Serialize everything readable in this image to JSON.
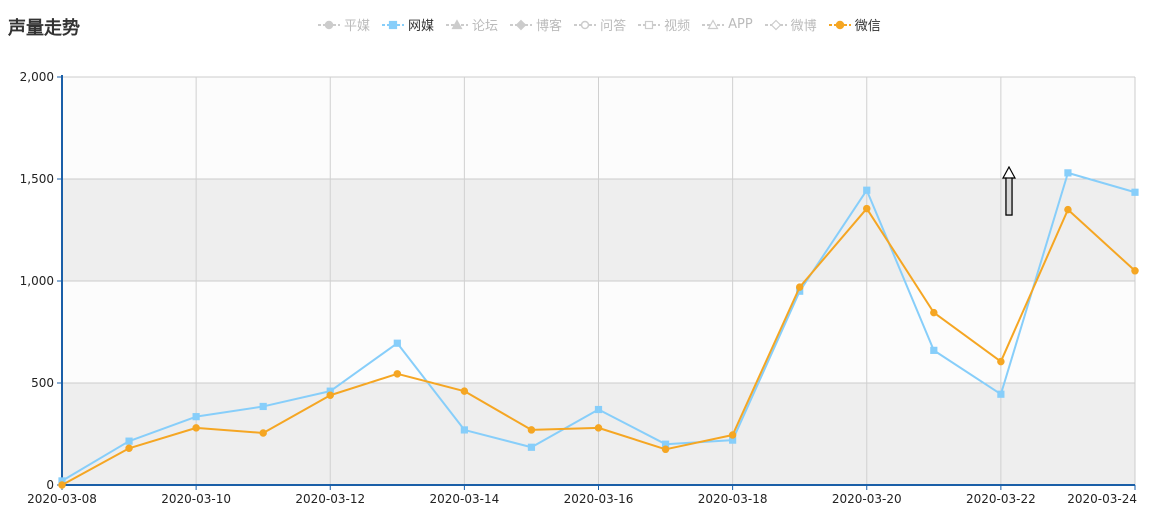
{
  "title": "声量走势",
  "legend": [
    {
      "name": "平媒",
      "color": "#cccccc",
      "marker": "circle",
      "active": false
    },
    {
      "name": "网媒",
      "color": "#87cefa",
      "marker": "square",
      "active": true
    },
    {
      "name": "论坛",
      "color": "#cccccc",
      "marker": "triangle",
      "active": false
    },
    {
      "name": "博客",
      "color": "#cccccc",
      "marker": "diamond",
      "active": false
    },
    {
      "name": "问答",
      "color": "#cccccc",
      "marker": "circle-open",
      "active": false
    },
    {
      "name": "视频",
      "color": "#cccccc",
      "marker": "square-open",
      "active": false
    },
    {
      "name": "APP",
      "color": "#cccccc",
      "marker": "triangle-open",
      "active": false
    },
    {
      "name": "微博",
      "color": "#cccccc",
      "marker": "diamond-open",
      "active": false
    },
    {
      "name": "微信",
      "color": "#f5a623",
      "marker": "circle",
      "active": true
    }
  ],
  "chart_data": {
    "type": "line",
    "title": "声量走势",
    "x": [
      "2020-03-08",
      "2020-03-09",
      "2020-03-10",
      "2020-03-11",
      "2020-03-12",
      "2020-03-13",
      "2020-03-14",
      "2020-03-15",
      "2020-03-16",
      "2020-03-17",
      "2020-03-18",
      "2020-03-19",
      "2020-03-20",
      "2020-03-21",
      "2020-03-22",
      "2020-03-23",
      "2020-03-24"
    ],
    "xtick_labels": [
      "2020-03-08",
      "2020-03-10",
      "2020-03-12",
      "2020-03-14",
      "2020-03-16",
      "2020-03-18",
      "2020-03-20",
      "2020-03-22",
      "2020-03-24"
    ],
    "ylim": [
      0,
      2000
    ],
    "ytick_labels": [
      "0",
      "500",
      "1,000",
      "1,500",
      "2,000"
    ],
    "series": [
      {
        "name": "网媒",
        "color": "#87cefa",
        "marker": "square",
        "values": [
          20,
          215,
          335,
          385,
          460,
          695,
          270,
          185,
          370,
          200,
          220,
          950,
          1445,
          660,
          445,
          1530,
          1435
        ]
      },
      {
        "name": "微信",
        "color": "#f5a623",
        "marker": "circle",
        "values": [
          0,
          180,
          280,
          255,
          440,
          545,
          460,
          270,
          280,
          175,
          245,
          970,
          1355,
          845,
          605,
          1350,
          1050
        ]
      }
    ],
    "grid": true,
    "legend_position": "top-center"
  }
}
